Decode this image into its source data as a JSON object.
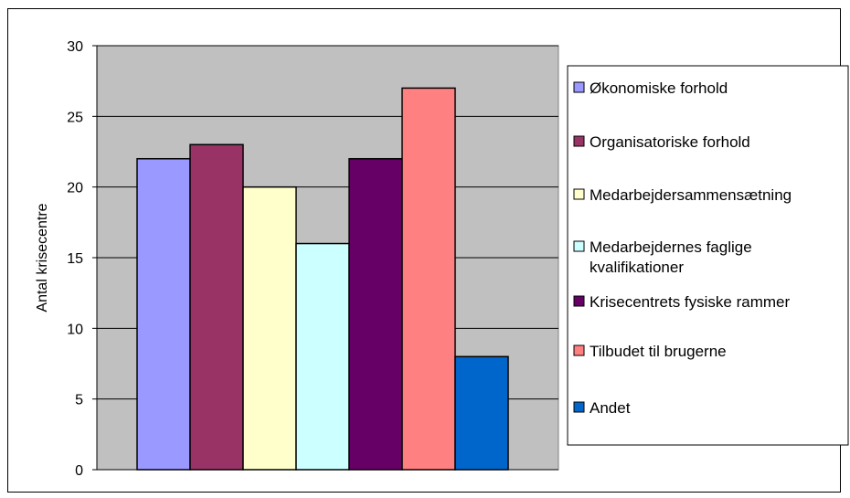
{
  "chart_data": {
    "type": "bar",
    "title": "",
    "xlabel": "",
    "ylabel": "Antal krisecentre",
    "ylim": [
      0,
      30
    ],
    "yticks": [
      0,
      5,
      10,
      15,
      20,
      25,
      30
    ],
    "grid": "horizontal",
    "plot_background": "#c0c0c0",
    "legend_position": "right",
    "series": [
      {
        "name": "Økonomiske forhold",
        "value": 22,
        "color": "#9999ff"
      },
      {
        "name": "Organisatoriske forhold",
        "value": 23,
        "color": "#993366"
      },
      {
        "name": "Medarbejdersammensætning",
        "value": 20,
        "color": "#ffffcc"
      },
      {
        "name": "Medarbejdernes faglige kvalifikationer",
        "value": 16,
        "color": "#ccffff"
      },
      {
        "name": "Krisecentrets fysiske rammer",
        "value": 22,
        "color": "#660066"
      },
      {
        "name": "Tilbudet til brugerne",
        "value": 27,
        "color": "#ff8080"
      },
      {
        "name": "Andet",
        "value": 8,
        "color": "#0066cc"
      }
    ]
  }
}
